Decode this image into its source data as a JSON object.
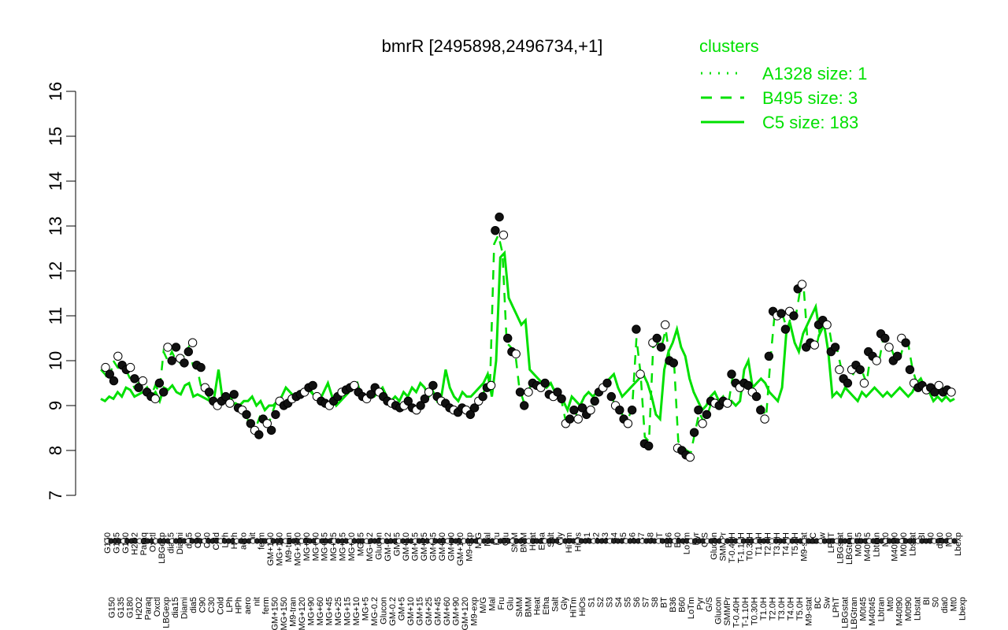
{
  "chart_data": {
    "type": "line",
    "title": "bmrR [2495898,2496734,+1]",
    "xlabel": "",
    "ylabel": "",
    "ylim": [
      7,
      16
    ],
    "yticks": [
      7,
      8,
      9,
      10,
      11,
      12,
      13,
      14,
      15,
      16
    ],
    "grid": false,
    "legend": {
      "title": "clusters",
      "placement": "top-right",
      "entries": [
        {
          "label": "A1328 size: 1",
          "style": "dotted",
          "color": "#00e000"
        },
        {
          "label": "B495 size: 3",
          "style": "dashed",
          "color": "#00e000"
        },
        {
          "label": "C5 size: 183",
          "style": "solid",
          "color": "#00e000"
        }
      ]
    },
    "x_labels": [
      "G150",
      "G135",
      "G180",
      "H2O2",
      "Paraq",
      "Oxctl",
      "LBGexp",
      "dia15",
      "Diami",
      "dia5",
      "C90",
      "C30",
      "Cold",
      "LPh",
      "HPh",
      "aero",
      "nit",
      "ferm",
      "GM+150",
      "MG+150",
      "M9-tran",
      "MG+120",
      "MG+90",
      "MG+60",
      "MG+45",
      "MG+25",
      "MG+15",
      "MG+10",
      "MG+5",
      "MG-0.2",
      "Glucon",
      "GM-0.2",
      "GM+5",
      "GM+10",
      "GM+15",
      "GM+25",
      "GM+45",
      "GM+60",
      "GM+90",
      "GM+120",
      "M9-exp",
      "M/G",
      "Mal",
      "Fru",
      "Glu",
      "SMM",
      "BMM",
      "Heat",
      "Etha",
      "Salt",
      "Gly",
      "HiTm",
      "HiOs",
      "S1",
      "S2",
      "S3",
      "S4",
      "S5",
      "S6",
      "S7",
      "S8",
      "BT",
      "B36",
      "B60",
      "LoTm",
      "Pyr",
      "G/S",
      "Glucon",
      "SMMPr",
      "T-0.40H",
      "T-1.10H",
      "T0.30H",
      "T1.0H",
      "T2.0H",
      "T3.0H",
      "T4.0H",
      "T5.0H",
      "M9-stat",
      "BC",
      "Sw",
      "LPhT",
      "LBGstat",
      "LBGtran",
      "M0t45",
      "M40t45",
      "Lbtran",
      "Mt0",
      "M40t90",
      "M0t90",
      "Lbstat",
      "BI",
      "S0",
      "dia0",
      "Mt0",
      "Lbexp"
    ],
    "points": [
      9.85,
      9.7,
      9.55,
      10.1,
      9.9,
      9.8,
      9.85,
      9.6,
      9.4,
      9.55,
      9.3,
      9.2,
      9.15,
      9.5,
      9.3,
      10.3,
      10.0,
      10.3,
      10.05,
      9.95,
      10.2,
      10.4,
      9.9,
      9.85,
      9.4,
      9.3,
      9.1,
      9.0,
      9.1,
      9.2,
      9.05,
      9.25,
      8.95,
      8.9,
      8.8,
      8.6,
      8.45,
      8.35,
      8.7,
      8.6,
      8.45,
      8.8,
      9.1,
      9.0,
      9.05,
      9.15,
      9.2,
      9.25,
      9.3,
      9.4,
      9.45,
      9.2,
      9.1,
      9.05,
      9.0,
      9.1,
      9.2,
      9.3,
      9.35,
      9.4,
      9.45,
      9.3,
      9.2,
      9.15,
      9.25,
      9.4,
      9.3,
      9.2,
      9.1,
      9.05,
      9.0,
      8.95,
      9.0,
      9.1,
      8.95,
      8.9,
      9.0,
      9.15,
      9.3,
      9.45,
      9.2,
      9.1,
      9.05,
      8.95,
      8.9,
      8.85,
      8.95,
      8.9,
      8.8,
      8.95,
      9.1,
      9.2,
      9.4,
      9.45,
      12.9,
      13.2,
      12.8,
      10.5,
      10.2,
      10.15,
      9.3,
      9.0,
      9.3,
      9.5,
      9.45,
      9.4,
      9.5,
      9.25,
      9.2,
      9.3,
      9.15,
      8.6,
      8.7,
      8.9,
      8.7,
      8.95,
      8.8,
      8.9,
      9.1,
      9.3,
      9.4,
      9.5,
      9.2,
      9.0,
      8.9,
      8.7,
      8.6,
      8.9,
      10.7,
      9.7,
      8.15,
      8.1,
      10.4,
      10.5,
      10.3,
      10.8,
      10.0,
      9.95,
      8.05,
      8.0,
      7.9,
      7.85,
      8.4,
      8.9,
      8.6,
      8.8,
      9.1,
      9.05,
      9.0,
      9.1,
      9.05,
      9.7,
      9.5,
      9.4,
      9.5,
      9.45,
      9.3,
      9.2,
      8.9,
      8.7,
      10.1,
      11.1,
      11.0,
      11.05,
      10.7,
      11.1,
      11.0,
      11.6,
      11.7,
      10.3,
      10.4,
      10.35,
      10.8,
      10.9,
      10.8,
      10.2,
      10.3,
      9.8,
      9.6,
      9.5,
      9.8,
      9.9,
      9.8,
      9.5,
      10.2,
      10.1,
      10.0,
      10.6,
      10.5,
      10.3,
      10.0,
      10.1,
      10.5,
      10.4,
      9.8,
      9.5,
      9.4,
      9.45,
      9.35,
      9.4,
      9.3,
      9.45,
      9.3,
      9.35,
      9.3
    ],
    "series": [
      {
        "style": "solid",
        "values": [
          9.15,
          9.1,
          9.2,
          9.15,
          9.3,
          9.2,
          9.4,
          9.35,
          9.2,
          9.25,
          9.3,
          9.4,
          9.2,
          9.3,
          9.1,
          9.4,
          9.35,
          9.45,
          9.3,
          9.25,
          9.45,
          9.5,
          9.2,
          9.25,
          9.2,
          9.15,
          9.1,
          9.2,
          9.8,
          9.1,
          9.2,
          9.0,
          9.05,
          9.0,
          9.1,
          9.1,
          9.2,
          9.0,
          9.1,
          8.9,
          9.0,
          9.0,
          9.1,
          9.2,
          9.4,
          9.3,
          9.2,
          9.3,
          9.35,
          9.4,
          9.3,
          9.2,
          9.1,
          9.3,
          9.5,
          9.2,
          9.0,
          9.1,
          9.2,
          9.3,
          9.4,
          9.5,
          9.2,
          9.1,
          9.2,
          9.2,
          9.3,
          9.4,
          9.2,
          9.1,
          9.2,
          9.1,
          9.3,
          9.2,
          9.4,
          9.3,
          9.5,
          9.4,
          9.2,
          9.3,
          9.1,
          9.2,
          9.8,
          9.4,
          9.2,
          9.1,
          9.3,
          9.2,
          9.2,
          9.3,
          9.4,
          9.5,
          9.7,
          9.2,
          10.0,
          12.3,
          12.4,
          11.4,
          11.2,
          11.0,
          10.8,
          10.9,
          9.8,
          9.7,
          9.6,
          9.5,
          9.4,
          9.5,
          9.3,
          9.2,
          9.1,
          8.9,
          9.2,
          9.1,
          9.0,
          9.2,
          9.3,
          9.2,
          9.3,
          9.4,
          9.5,
          9.6,
          9.7,
          9.4,
          9.2,
          9.3,
          9.4,
          9.5,
          9.6,
          9.7,
          9.5,
          9.2,
          8.8,
          8.7,
          9.8,
          10.2,
          10.4,
          10.7,
          10.3,
          10.1,
          9.6,
          9.3,
          9.1,
          8.9,
          9.0,
          9.2,
          9.3,
          9.1,
          9.2,
          9.0,
          9.1,
          9.0,
          9.1,
          9.8,
          10.0,
          9.4,
          9.5,
          9.6,
          9.5,
          9.3,
          9.2,
          9.1,
          9.4,
          10.6,
          10.8,
          10.4,
          10.2,
          10.6,
          10.8,
          11.0,
          11.2,
          10.6,
          10.8,
          10.2,
          9.2,
          9.3,
          9.2,
          9.4,
          9.3,
          9.2,
          9.1,
          9.3,
          9.2,
          9.3,
          9.4,
          9.3,
          9.2,
          9.3,
          9.2,
          9.3,
          9.4,
          9.3,
          9.2,
          9.3,
          9.5,
          9.6,
          9.4,
          9.3,
          9.1,
          9.2,
          9.1,
          9.2,
          9.1,
          9.15
        ]
      },
      {
        "style": "dashed",
        "values": [
          9.8,
          9.7,
          9.55,
          10.0,
          9.85,
          9.8,
          9.8,
          9.6,
          9.4,
          9.5,
          9.3,
          9.25,
          9.2,
          9.45,
          9.3,
          10.2,
          10.0,
          10.2,
          10.0,
          9.95,
          10.15,
          10.3,
          9.9,
          9.85,
          9.4,
          9.3,
          9.15,
          9.05,
          9.1,
          9.2,
          9.05,
          9.2,
          9.0,
          8.95,
          8.85,
          8.7,
          8.55,
          8.5,
          8.75,
          8.65,
          8.55,
          8.85,
          9.1,
          9.0,
          9.05,
          9.15,
          9.2,
          9.25,
          9.3,
          9.4,
          9.4,
          9.2,
          9.1,
          9.05,
          9.0,
          9.1,
          9.2,
          9.3,
          9.3,
          9.4,
          9.4,
          9.3,
          9.2,
          9.15,
          9.25,
          9.35,
          9.3,
          9.2,
          9.1,
          9.05,
          9.0,
          8.95,
          9.0,
          9.1,
          8.95,
          8.9,
          9.0,
          9.15,
          9.3,
          9.4,
          9.2,
          9.1,
          9.05,
          8.95,
          8.9,
          8.85,
          8.95,
          8.9,
          8.85,
          8.95,
          9.1,
          9.2,
          9.4,
          9.45,
          12.6,
          12.8,
          12.4,
          10.4,
          10.3,
          10.2,
          9.4,
          9.1,
          9.3,
          9.5,
          9.45,
          9.4,
          9.45,
          9.25,
          9.2,
          9.3,
          9.15,
          8.7,
          8.75,
          8.9,
          8.75,
          8.95,
          8.85,
          8.9,
          9.1,
          9.3,
          9.4,
          9.45,
          9.2,
          9.0,
          8.9,
          8.75,
          8.7,
          8.95,
          10.5,
          9.7,
          8.3,
          8.2,
          10.3,
          10.4,
          10.3,
          10.7,
          10.0,
          9.95,
          8.2,
          8.1,
          8.0,
          7.95,
          8.4,
          8.85,
          8.65,
          8.8,
          9.1,
          9.05,
          9.0,
          9.1,
          9.05,
          9.65,
          9.5,
          9.4,
          9.45,
          9.4,
          9.3,
          9.2,
          8.95,
          8.75,
          10.0,
          11.0,
          10.95,
          11.0,
          10.7,
          11.0,
          10.95,
          11.5,
          11.6,
          10.3,
          10.35,
          10.3,
          10.75,
          10.85,
          10.75,
          10.2,
          10.25,
          9.8,
          9.6,
          9.5,
          9.75,
          9.85,
          9.75,
          9.5,
          10.15,
          10.05,
          10.0,
          10.5,
          10.45,
          10.25,
          10.0,
          10.05,
          10.4,
          10.35,
          9.8,
          9.5,
          9.4,
          9.4,
          9.3,
          9.35,
          9.3,
          9.4,
          9.3,
          9.3,
          9.25
        ]
      }
    ]
  }
}
